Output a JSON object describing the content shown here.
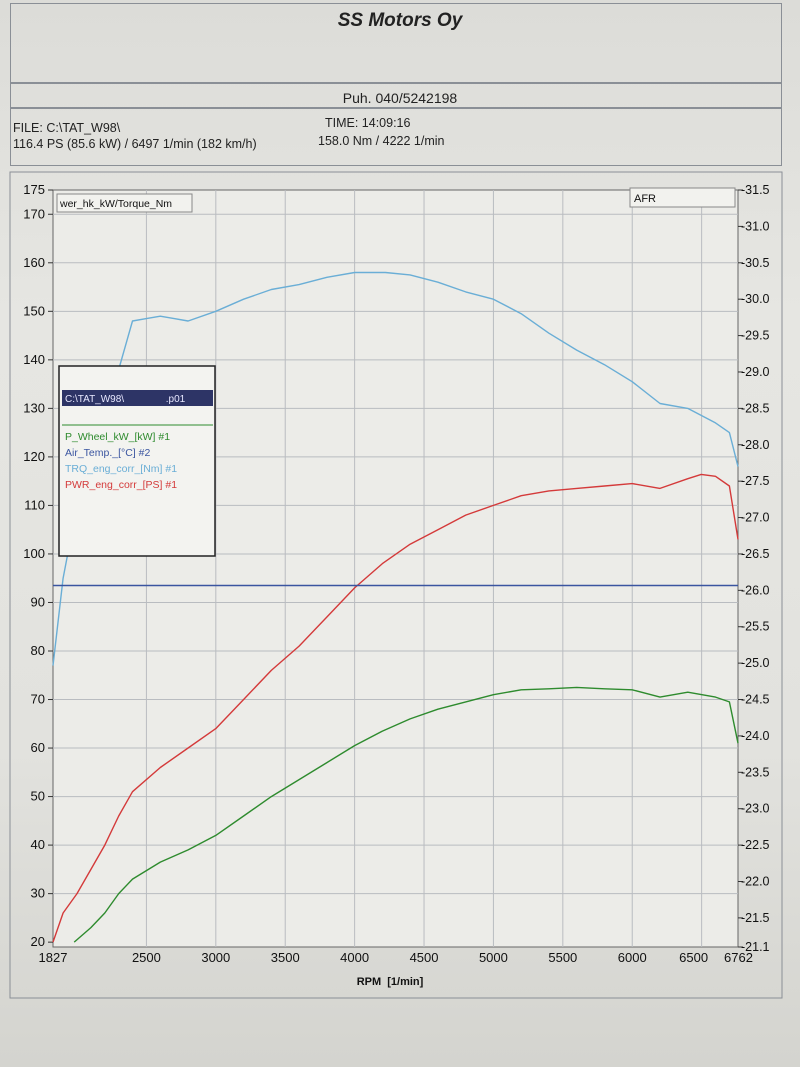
{
  "header": {
    "company": "SS Motors Oy",
    "phone": "Puh. 040/5242198",
    "file": "FILE: C:\\TAT_W98\\",
    "time": "TIME: 14:09:16",
    "power_summary": "116.4 PS  (85.6 kW) / 6497 1/min (182 km/h)",
    "torque_summary": "158.0 Nm / 4222 1/min"
  },
  "chart_data": {
    "type": "line",
    "xlabel": "RPM  [1/min]",
    "x_ticks": [
      "1827",
      "2500",
      "3000",
      "3500",
      "4000",
      "4500",
      "5000",
      "5500",
      "6000",
      "6500",
      "6762"
    ],
    "xlim": [
      1827,
      6762
    ],
    "left_axis_label": "wer_hk_kW/Torque_Nm",
    "right_axis_label": "AFR",
    "ylim_left": [
      19,
      175
    ],
    "y_ticks_left": [
      "175",
      "170",
      "160",
      "150",
      "140",
      "130",
      "120",
      "110",
      "100",
      "90",
      "80",
      "70",
      "60",
      "50",
      "40",
      "30",
      "20"
    ],
    "ylim_right": [
      -21.1,
      -31.5
    ],
    "y_ticks_right": [
      "-31.5",
      "-31.0",
      "-30.5",
      "-30.0",
      "-29.5",
      "-29.0",
      "-28.5",
      "-28.0",
      "-27.5",
      "-27.0",
      "-26.5",
      "-26.0",
      "-25.5",
      "-25.0",
      "-24.5",
      "-24.0",
      "-23.5",
      "-23.0",
      "-22.5",
      "-22.0",
      "-21.5",
      "-21.1"
    ],
    "grid": true,
    "legend": {
      "header": "C:\\TAT_W98\\               .p01",
      "entries": [
        {
          "label": "P_Wheel_kW_[kW] #1",
          "color": "#2e8b2e"
        },
        {
          "label": "Air_Temp._[°C] #2",
          "color": "#3a55a0"
        },
        {
          "label": "TRQ_eng_corr_[Nm] #1",
          "color": "#6aaed6"
        },
        {
          "label": "PWR_eng_corr_[PS] #1",
          "color": "#d43a3a"
        }
      ]
    },
    "series": [
      {
        "name": "TRQ_eng_corr_[Nm] #1",
        "color": "#6aaed6",
        "x": [
          1827,
          1900,
          2000,
          2100,
          2200,
          2300,
          2400,
          2500,
          2600,
          2700,
          2800,
          3000,
          3200,
          3400,
          3600,
          3800,
          4000,
          4222,
          4400,
          4600,
          4800,
          5000,
          5200,
          5400,
          5600,
          5800,
          6000,
          6200,
          6400,
          6600,
          6700,
          6762
        ],
        "y": [
          77,
          95,
          110,
          126,
          132,
          138,
          148,
          148.5,
          149,
          148.5,
          148,
          150,
          152.5,
          154.5,
          155.5,
          157,
          158,
          158,
          157.5,
          156,
          154,
          152.5,
          149.5,
          145.5,
          142,
          139,
          135.5,
          131,
          130,
          127,
          125,
          118
        ]
      },
      {
        "name": "PWR_eng_corr_[PS] #1",
        "color": "#d43a3a",
        "x": [
          1827,
          1900,
          2000,
          2100,
          2200,
          2300,
          2400,
          2600,
          2800,
          3000,
          3200,
          3400,
          3600,
          3800,
          4000,
          4200,
          4400,
          4600,
          4800,
          5000,
          5200,
          5400,
          5600,
          5800,
          6000,
          6200,
          6400,
          6497,
          6600,
          6700,
          6762
        ],
        "y": [
          20,
          26,
          30,
          35,
          40,
          46,
          51,
          56,
          60,
          64,
          70,
          76,
          81,
          87,
          93,
          98,
          102,
          105,
          108,
          110,
          112,
          113,
          113.5,
          114,
          114.5,
          113.5,
          115.5,
          116.4,
          116,
          114,
          103
        ]
      },
      {
        "name": "P_Wheel_kW_[kW] #1",
        "color": "#2e8b2e",
        "x": [
          1980,
          2100,
          2200,
          2300,
          2400,
          2600,
          2800,
          3000,
          3200,
          3400,
          3600,
          3800,
          4000,
          4200,
          4400,
          4600,
          4800,
          5000,
          5200,
          5400,
          5600,
          5800,
          6000,
          6200,
          6400,
          6600,
          6700,
          6762
        ],
        "y": [
          20,
          23,
          26,
          30,
          33,
          36.5,
          39,
          42,
          46,
          50,
          53.5,
          57,
          60.5,
          63.5,
          66,
          68,
          69.5,
          71,
          72,
          72.2,
          72.5,
          72.2,
          72,
          70.5,
          71.5,
          70.5,
          69.5,
          61
        ]
      },
      {
        "name": "Air_Temp._[°C] #2",
        "color": "#3a55a0",
        "x": [
          1827,
          6762
        ],
        "y": [
          93.5,
          93.5
        ]
      }
    ]
  }
}
